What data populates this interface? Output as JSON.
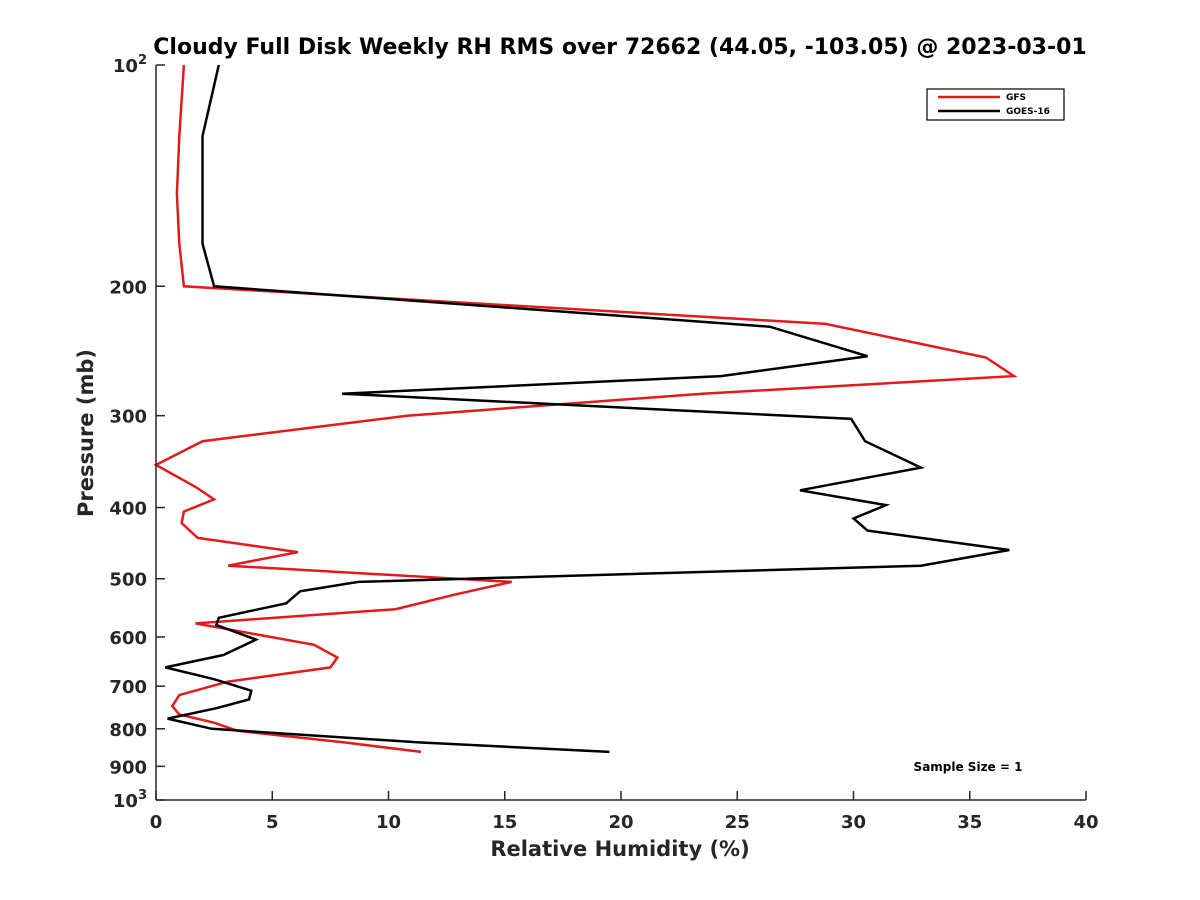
{
  "chart_data": {
    "type": "line",
    "title": "Cloudy Full Disk Weekly RH RMS over 72662 (44.05, -103.05) @ 2023-03-01",
    "xlabel": "Relative Humidity (%)",
    "ylabel": "Pressure (mb)",
    "xlim": [
      0,
      40
    ],
    "ylim": [
      100,
      1000
    ],
    "y_scale": "log",
    "y_reversed": true,
    "grid": false,
    "legend_position": "top-right",
    "x_ticks": [
      "0",
      "5",
      "10",
      "15",
      "20",
      "25",
      "30",
      "35",
      "40"
    ],
    "y_ticks": [
      {
        "value": 100,
        "label": "10",
        "exp": "2"
      },
      {
        "value": 200,
        "label": "200"
      },
      {
        "value": 300,
        "label": "300"
      },
      {
        "value": 400,
        "label": "400"
      },
      {
        "value": 500,
        "label": "500"
      },
      {
        "value": 600,
        "label": "600"
      },
      {
        "value": 700,
        "label": "700"
      },
      {
        "value": 800,
        "label": "800"
      },
      {
        "value": 900,
        "label": "900"
      },
      {
        "value": 1000,
        "label": "10",
        "exp": "3"
      }
    ],
    "series": [
      {
        "name": "GFS",
        "color": "#e31a1c",
        "x": [
          1.2,
          1.0,
          0.9,
          1.0,
          1.2,
          28.8,
          35.7,
          36.9,
          23.5,
          10.8,
          2.0,
          0.0,
          1.7,
          2.5,
          1.2,
          1.1,
          1.8,
          6.1,
          3.1,
          15.3,
          12.9,
          10.3,
          1.7,
          6.8,
          7.8,
          7.5,
          3.1,
          1.0,
          0.7,
          1.0,
          2.5,
          3.5,
          8.1,
          11.4
        ],
        "y": [
          100,
          125,
          150,
          175,
          200,
          225,
          250,
          265,
          280,
          300,
          325,
          350,
          375,
          390,
          405,
          420,
          440,
          460,
          480,
          505,
          525,
          550,
          575,
          615,
          640,
          660,
          690,
          720,
          745,
          765,
          785,
          805,
          835,
          860
        ]
      },
      {
        "name": "GOES-16",
        "color": "#000000",
        "x": [
          2.7,
          2.0,
          2.0,
          2.0,
          2.5,
          26.4,
          30.6,
          24.3,
          8.0,
          29.9,
          30.5,
          32.9,
          27.7,
          31.4,
          30.0,
          30.6,
          36.7,
          32.9,
          8.7,
          6.2,
          5.6,
          2.7,
          2.6,
          4.3,
          2.9,
          0.4,
          2.5,
          4.1,
          4.0,
          2.6,
          0.5,
          2.4,
          11.3,
          19.5
        ],
        "y": [
          100,
          125,
          150,
          175,
          200,
          227,
          249,
          265,
          280,
          303,
          325,
          353,
          379,
          397,
          414,
          430,
          457,
          480,
          505,
          520,
          540,
          565,
          578,
          605,
          635,
          660,
          685,
          710,
          730,
          750,
          775,
          800,
          835,
          860
        ]
      }
    ],
    "annotations": [
      "Sample Size = 1"
    ]
  }
}
